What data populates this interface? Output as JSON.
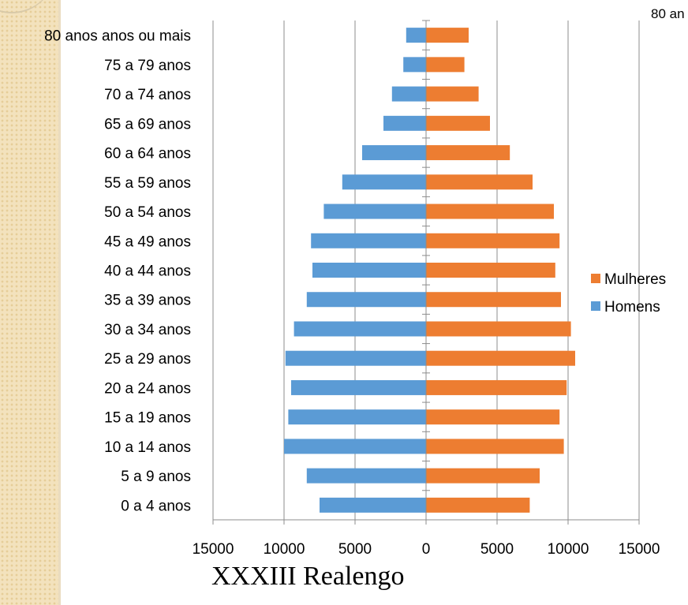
{
  "chart_data": {
    "type": "bar",
    "orientation": "horizontal",
    "title": "XXXIII Realengo",
    "categories": [
      "0 a 4 anos",
      "5 a 9 anos",
      "10 a 14 anos",
      "15 a 19 anos",
      "20 a 24 anos",
      "25 a 29 anos",
      "30 a 34 anos",
      "35 a 39 anos",
      "40 a 44 anos",
      "45 a 49 anos",
      "50 a 54 anos",
      "55 a 59 anos",
      "60 a 64 anos",
      "65 a 69 anos",
      "70 a 74 anos",
      "75 a 79 anos",
      "80 anos anos ou mais"
    ],
    "series": [
      {
        "name": "Homens",
        "color": "#5b9bd5",
        "values": [
          -7500,
          -8400,
          -10000,
          -9700,
          -9500,
          -9900,
          -9300,
          -8400,
          -8000,
          -8100,
          -7200,
          -5900,
          -4500,
          -3000,
          -2400,
          -1600,
          -1400
        ]
      },
      {
        "name": "Mulheres",
        "color": "#ed7d31",
        "values": [
          7300,
          8000,
          9700,
          9400,
          9900,
          10500,
          10200,
          9500,
          9100,
          9400,
          9000,
          7500,
          5900,
          4500,
          3700,
          2700,
          3000
        ]
      }
    ],
    "xlim": [
      -15000,
      15000
    ],
    "x_ticks": [
      -15000,
      -10000,
      -5000,
      0,
      5000,
      10000,
      15000
    ],
    "x_tick_labels": [
      "15000",
      "10000",
      "5000",
      "0",
      "5000",
      "10000",
      "15000"
    ],
    "grid": "vertical",
    "legend": [
      "Mulheres",
      "Homens"
    ],
    "legend_position": "right"
  },
  "corner_label": "80 an"
}
